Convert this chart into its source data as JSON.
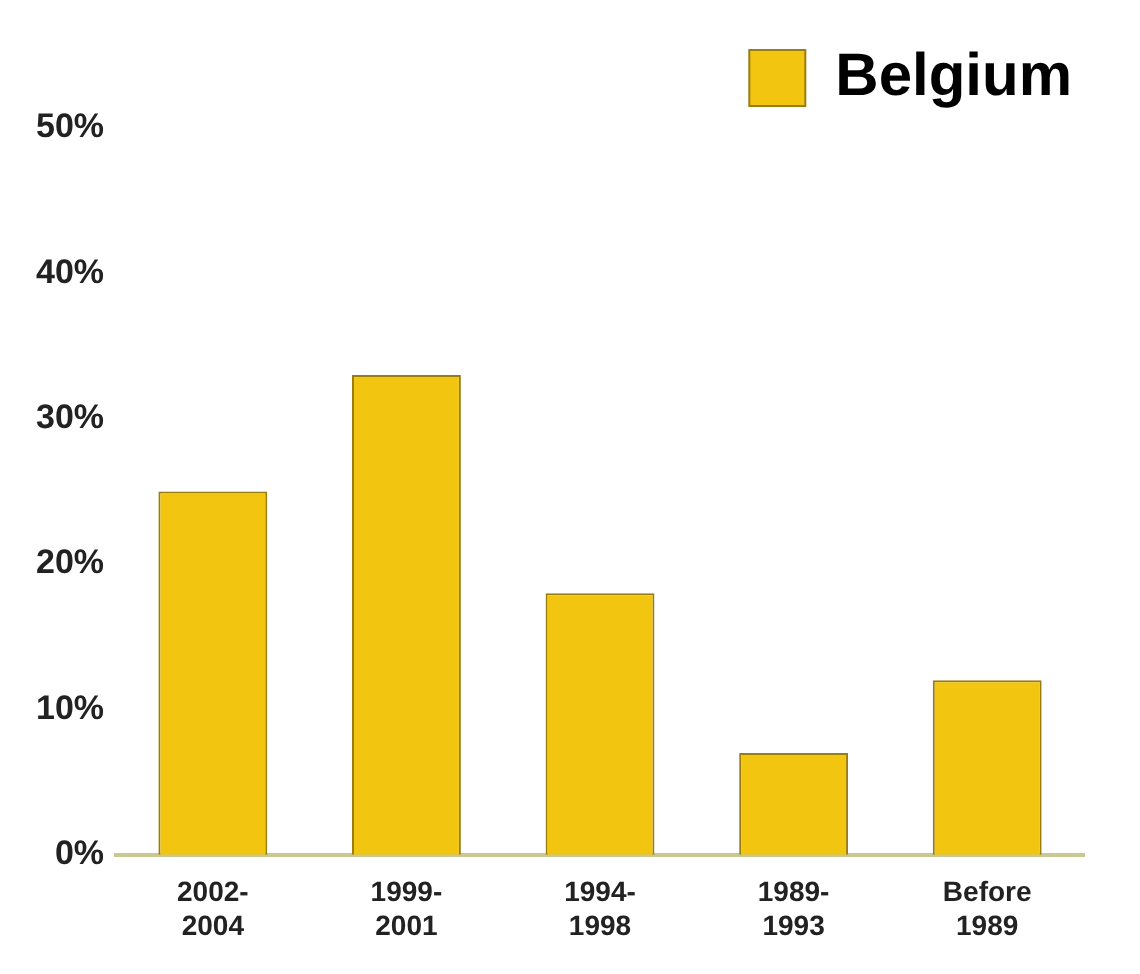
{
  "chart_data": {
    "type": "bar",
    "categories": [
      "2002- 2004",
      "1999- 2001",
      "1994- 1998",
      "1989- 1993",
      "Before 1989"
    ],
    "series": [
      {
        "name": "Belgium",
        "color": "#f2c511",
        "values": [
          25,
          33,
          18,
          7,
          12
        ]
      }
    ],
    "ylim": [
      0,
      50
    ],
    "yticks": [
      {
        "value": 0,
        "label": "0%"
      },
      {
        "value": 10,
        "label": "10%"
      },
      {
        "value": 20,
        "label": "20%"
      },
      {
        "value": 30,
        "label": "30%"
      },
      {
        "value": 40,
        "label": "40%"
      },
      {
        "value": 50,
        "label": "50%"
      }
    ],
    "grid": false,
    "legend": "top right"
  }
}
